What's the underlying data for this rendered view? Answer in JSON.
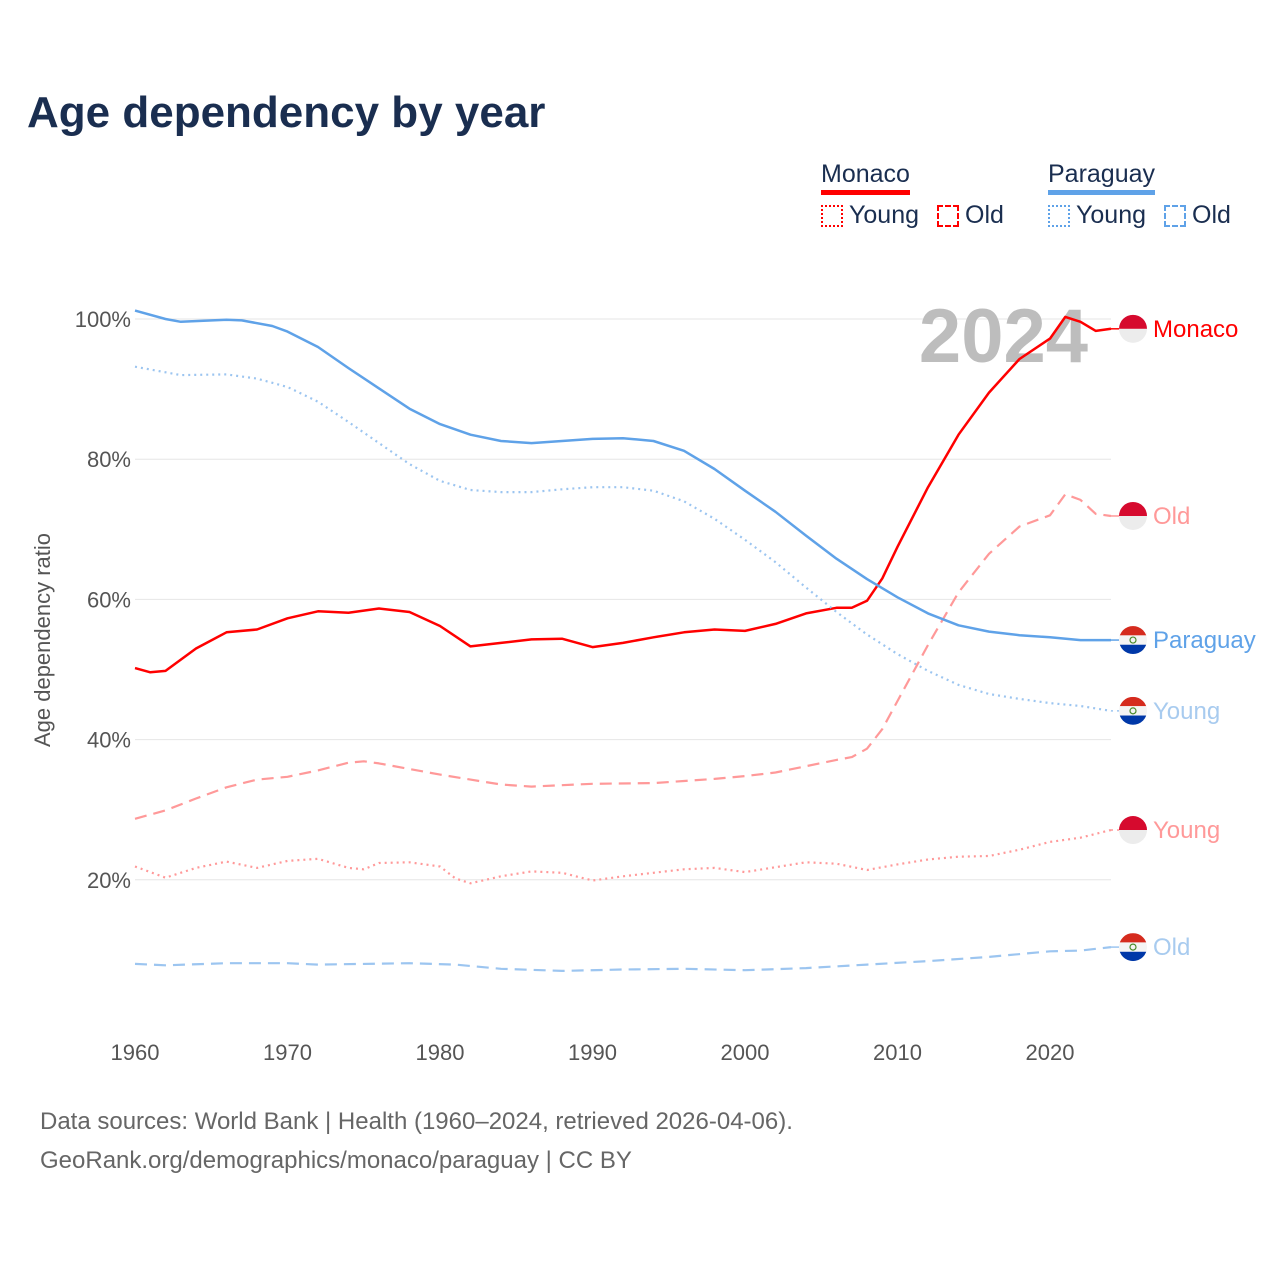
{
  "chart_data": {
    "type": "line",
    "title": "Age dependency by year",
    "xlabel": "",
    "ylabel": "Age dependency ratio",
    "xlim": [
      1960,
      2024
    ],
    "ylim": [
      0,
      100
    ],
    "x_ticks": [
      "1960",
      "1970",
      "1980",
      "1990",
      "2000",
      "2010",
      "2020"
    ],
    "y_ticks": [
      "20%",
      "40%",
      "60%",
      "80%",
      "100%"
    ],
    "grid": true,
    "year_label": "2024",
    "legend": {
      "placement": "top-right",
      "groups": [
        {
          "name": "Monaco",
          "items": [
            "Young",
            "Old"
          ]
        },
        {
          "name": "Paraguay",
          "items": [
            "Young",
            "Old"
          ]
        }
      ]
    },
    "series": [
      {
        "name": "Monaco",
        "country": "Monaco",
        "kind": "total",
        "style": "solid",
        "color": "#ff0000",
        "end_label": "Monaco",
        "x": [
          1960,
          1961,
          1962,
          1964,
          1966,
          1968,
          1970,
          1972,
          1974,
          1976,
          1978,
          1980,
          1982,
          1984,
          1986,
          1988,
          1990,
          1992,
          1994,
          1996,
          1998,
          2000,
          2002,
          2004,
          2006,
          2007,
          2008,
          2009,
          2010,
          2012,
          2014,
          2016,
          2018,
          2020,
          2021,
          2022,
          2023,
          2024
        ],
        "y": [
          50.2,
          49.6,
          49.8,
          53,
          55.3,
          55.7,
          57.3,
          58.3,
          58.1,
          58.7,
          58.2,
          56.2,
          53.3,
          53.8,
          54.3,
          54.4,
          53.2,
          53.8,
          54.6,
          55.3,
          55.7,
          55.5,
          56.5,
          58.0,
          58.8,
          58.8,
          59.8,
          63,
          67.5,
          76.0,
          83.5,
          89.5,
          94.3,
          97.2,
          100.3,
          99.6,
          98.3,
          98.6
        ]
      },
      {
        "name": "Monaco Old",
        "country": "Monaco",
        "kind": "old",
        "style": "dashed",
        "color": "#ff9999",
        "end_label": "Old",
        "x": [
          1960,
          1962,
          1964,
          1966,
          1968,
          1970,
          1972,
          1974,
          1975,
          1976,
          1978,
          1980,
          1982,
          1984,
          1986,
          1988,
          1990,
          1994,
          1996,
          1998,
          2000,
          2002,
          2004,
          2006,
          2007,
          2008,
          2009,
          2010,
          2012,
          2014,
          2016,
          2018,
          2020,
          2021,
          2022,
          2023,
          2024
        ],
        "y": [
          28.7,
          29.9,
          31.6,
          33.2,
          34.3,
          34.7,
          35.6,
          36.7,
          36.9,
          36.6,
          35.8,
          35.0,
          34.3,
          33.6,
          33.3,
          33.5,
          33.7,
          33.8,
          34.1,
          34.4,
          34.8,
          35.3,
          36.2,
          37.1,
          37.5,
          38.7,
          41.5,
          45.5,
          53.5,
          61,
          66.5,
          70.4,
          72,
          75,
          74.2,
          72.2,
          71.9
        ]
      },
      {
        "name": "Monaco Young",
        "country": "Monaco",
        "kind": "young",
        "style": "dotted",
        "color": "#ff9999",
        "end_label": "Young",
        "x": [
          1960,
          1962,
          1964,
          1966,
          1968,
          1970,
          1972,
          1974,
          1975,
          1976,
          1978,
          1980,
          1981,
          1982,
          1984,
          1986,
          1988,
          1990,
          1992,
          1994,
          1996,
          1998,
          2000,
          2002,
          2004,
          2006,
          2008,
          2010,
          2012,
          2014,
          2016,
          2018,
          2020,
          2022,
          2024
        ],
        "y": [
          21.9,
          20.3,
          21.7,
          22.6,
          21.7,
          22.7,
          23.0,
          21.7,
          21.5,
          22.4,
          22.5,
          21.9,
          20.2,
          19.5,
          20.5,
          21.2,
          21.0,
          19.9,
          20.5,
          21.0,
          21.5,
          21.7,
          21.1,
          21.8,
          22.5,
          22.3,
          21.4,
          22.2,
          22.9,
          23.3,
          23.4,
          24.3,
          25.4,
          26.0,
          27.1
        ]
      },
      {
        "name": "Paraguay",
        "country": "Paraguay",
        "kind": "total",
        "style": "solid",
        "color": "#5fa2e8",
        "end_label": "Paraguay",
        "x": [
          1960,
          1962,
          1963,
          1966,
          1967,
          1969,
          1970,
          1972,
          1974,
          1976,
          1978,
          1980,
          1982,
          1984,
          1986,
          1988,
          1990,
          1992,
          1994,
          1996,
          1998,
          2000,
          2002,
          2004,
          2006,
          2008,
          2010,
          2012,
          2014,
          2016,
          2018,
          2020,
          2022,
          2024
        ],
        "y": [
          101.2,
          100,
          99.6,
          99.9,
          99.8,
          99.0,
          98.2,
          96,
          93,
          90.1,
          87.2,
          85,
          83.5,
          82.6,
          82.3,
          82.6,
          82.9,
          83,
          82.6,
          81.2,
          78.6,
          75.5,
          72.5,
          69.1,
          65.8,
          62.9,
          60.3,
          58,
          56.3,
          55.4,
          54.9,
          54.6,
          54.2,
          54.2
        ]
      },
      {
        "name": "Paraguay Young",
        "country": "Paraguay",
        "kind": "young",
        "style": "dotted",
        "color": "#9cc5f0",
        "end_label": "Young",
        "x": [
          1960,
          1963,
          1966,
          1968,
          1970,
          1972,
          1974,
          1976,
          1978,
          1980,
          1982,
          1984,
          1986,
          1988,
          1990,
          1992,
          1994,
          1996,
          1998,
          2000,
          2002,
          2004,
          2006,
          2008,
          2010,
          2012,
          2014,
          2016,
          2018,
          2020,
          2022,
          2024
        ],
        "y": [
          93.2,
          92,
          92.1,
          91.5,
          90.3,
          88.2,
          85.3,
          82.3,
          79.3,
          76.9,
          75.6,
          75.3,
          75.3,
          75.7,
          76,
          76,
          75.5,
          74,
          71.5,
          68.5,
          65.3,
          61.7,
          58.2,
          55,
          52.2,
          49.8,
          47.8,
          46.5,
          45.8,
          45.2,
          44.8,
          44.1
        ]
      },
      {
        "name": "Paraguay Old",
        "country": "Paraguay",
        "kind": "old",
        "style": "dashed",
        "color": "#9cc5f0",
        "end_label": "Old",
        "x": [
          1960,
          1962,
          1966,
          1970,
          1972,
          1978,
          1981,
          1984,
          1988,
          1992,
          1996,
          2000,
          2004,
          2008,
          2012,
          2016,
          2020,
          2022,
          2024
        ],
        "y": [
          8.0,
          7.8,
          8.1,
          8.1,
          7.9,
          8.1,
          7.9,
          7.3,
          7.0,
          7.2,
          7.3,
          7.1,
          7.4,
          7.9,
          8.4,
          9.0,
          9.8,
          9.9,
          10.4
        ]
      }
    ]
  },
  "footer": {
    "line1": "Data sources: World Bank | Health (1960–2024, retrieved 2026-04-06).",
    "line2": "GeoRank.org/demographics/monaco/paraguay | CC BY"
  }
}
